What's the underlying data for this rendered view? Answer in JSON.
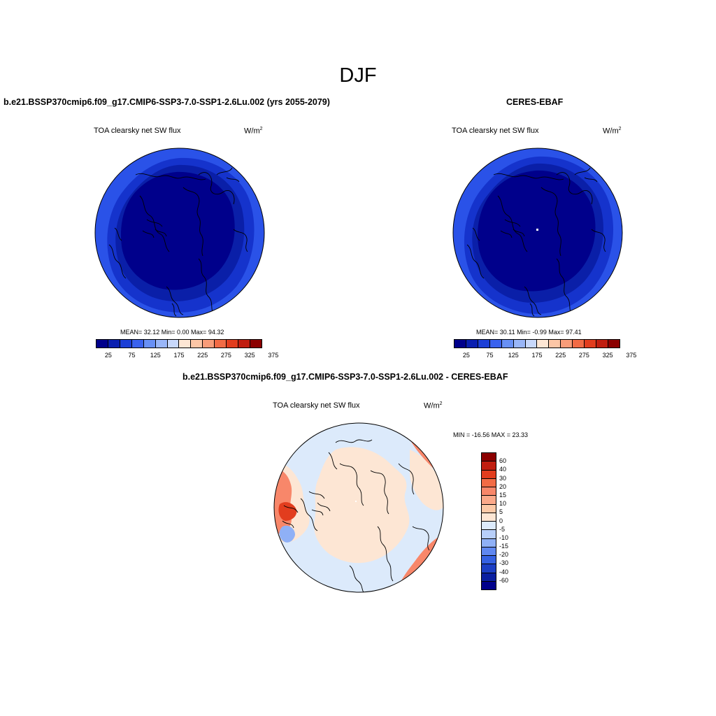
{
  "season": "DJF",
  "left_panel": {
    "case_title": "b.e21.BSSP370cmip6.f09_g17.CMIP6-SSP3-7.0-SSP1-2.6Lu.002 (yrs 2055-2079)",
    "variable": "TOA clearsky net SW flux",
    "units_base": "W/m",
    "units_exp": "2",
    "stats": "MEAN=  32.12  Min=   0.00  Max=  94.32"
  },
  "right_panel": {
    "case_title": "CERES-EBAF",
    "variable": "TOA clearsky net SW flux",
    "units_base": "W/m",
    "units_exp": "2",
    "stats": "MEAN=  30.11  Min=  -0.99  Max=  97.41"
  },
  "diff_panel": {
    "case_title": "b.e21.BSSP370cmip6.f09_g17.CMIP6-SSP3-7.0-SSP1-2.6Lu.002 - CERES-EBAF",
    "variable": "TOA clearsky net SW flux",
    "units_base": "W/m",
    "units_exp": "2",
    "stats": "MIN = -16.56 MAX =  23.33"
  },
  "abs_colorbar": {
    "labels": [
      "25",
      "75",
      "125",
      "175",
      "225",
      "275",
      "325",
      "375"
    ],
    "colors": [
      "#00008b",
      "#0a1fb0",
      "#1c3fd6",
      "#3a62ee",
      "#6890f5",
      "#99b6f8",
      "#c8d8fb",
      "#fde6d4",
      "#fcc6a6",
      "#f89c79",
      "#f26b45",
      "#e23d1e",
      "#c01e10",
      "#8b0000"
    ]
  },
  "diff_colorbar": {
    "labels": [
      "60",
      "40",
      "30",
      "20",
      "15",
      "10",
      "5",
      "0",
      "-5",
      "-10",
      "-15",
      "-20",
      "-30",
      "-40",
      "-60"
    ],
    "colors": [
      "#8b0000",
      "#c01e10",
      "#e23d1e",
      "#f26b45",
      "#f8876a",
      "#fba98a",
      "#fcc9a7",
      "#fde6d4",
      "#dceafb",
      "#b8cff9",
      "#8fb0f6",
      "#5f87f0",
      "#3561e2",
      "#1c3fc4",
      "#0a1fa0",
      "#00008b"
    ]
  },
  "map_colors": {
    "abs_outer": "#2a52e8",
    "abs_mid": "#1533cc",
    "abs_inner": "#0a1fa8",
    "abs_core": "#00008b",
    "diff_neutral": "#fde6d4",
    "diff_light_blue": "#dceafb",
    "diff_mid_blue": "#8fb0f6",
    "diff_orange": "#f8876a",
    "diff_red": "#e23d1e"
  }
}
